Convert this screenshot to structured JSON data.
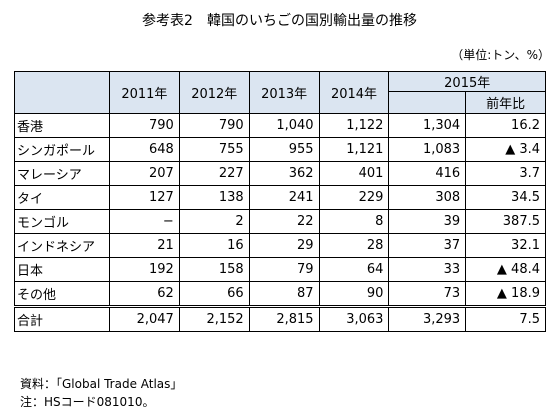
{
  "title": "参考表2　韓国のいちごの国別輸出量の推移",
  "unit": "（単位:トン、%）",
  "headers": {
    "years": [
      "2011年",
      "2012年",
      "2013年",
      "2014年"
    ],
    "year2015": "2015年",
    "yoy": "前年比"
  },
  "rows": [
    {
      "name": "香港",
      "values": [
        "790",
        "790",
        "1,040",
        "1,122",
        "1,304"
      ],
      "yoy": "16.2"
    },
    {
      "name": "シンガポール",
      "values": [
        "648",
        "755",
        "955",
        "1,121",
        "1,083"
      ],
      "yoy": "▲ 3.4"
    },
    {
      "name": "マレーシア",
      "values": [
        "207",
        "227",
        "362",
        "401",
        "416"
      ],
      "yoy": "3.7"
    },
    {
      "name": "タイ",
      "values": [
        "127",
        "138",
        "241",
        "229",
        "308"
      ],
      "yoy": "34.5"
    },
    {
      "name": "モンゴル",
      "values": [
        "−",
        "2",
        "22",
        "8",
        "39"
      ],
      "yoy": "387.5"
    },
    {
      "name": "インドネシア",
      "values": [
        "21",
        "16",
        "29",
        "28",
        "37"
      ],
      "yoy": "32.1"
    },
    {
      "name": "日本",
      "values": [
        "192",
        "158",
        "79",
        "64",
        "33"
      ],
      "yoy": "▲ 48.4"
    },
    {
      "name": "その他",
      "values": [
        "62",
        "66",
        "87",
        "90",
        "73"
      ],
      "yoy": "▲ 18.9"
    }
  ],
  "total": {
    "name": "合計",
    "values": [
      "2,047",
      "2,152",
      "2,815",
      "3,063",
      "3,293"
    ],
    "yoy": "7.5"
  },
  "notes": {
    "source": "資料：「Global Trade Atlas」",
    "note": "注：HSコード081010。"
  }
}
